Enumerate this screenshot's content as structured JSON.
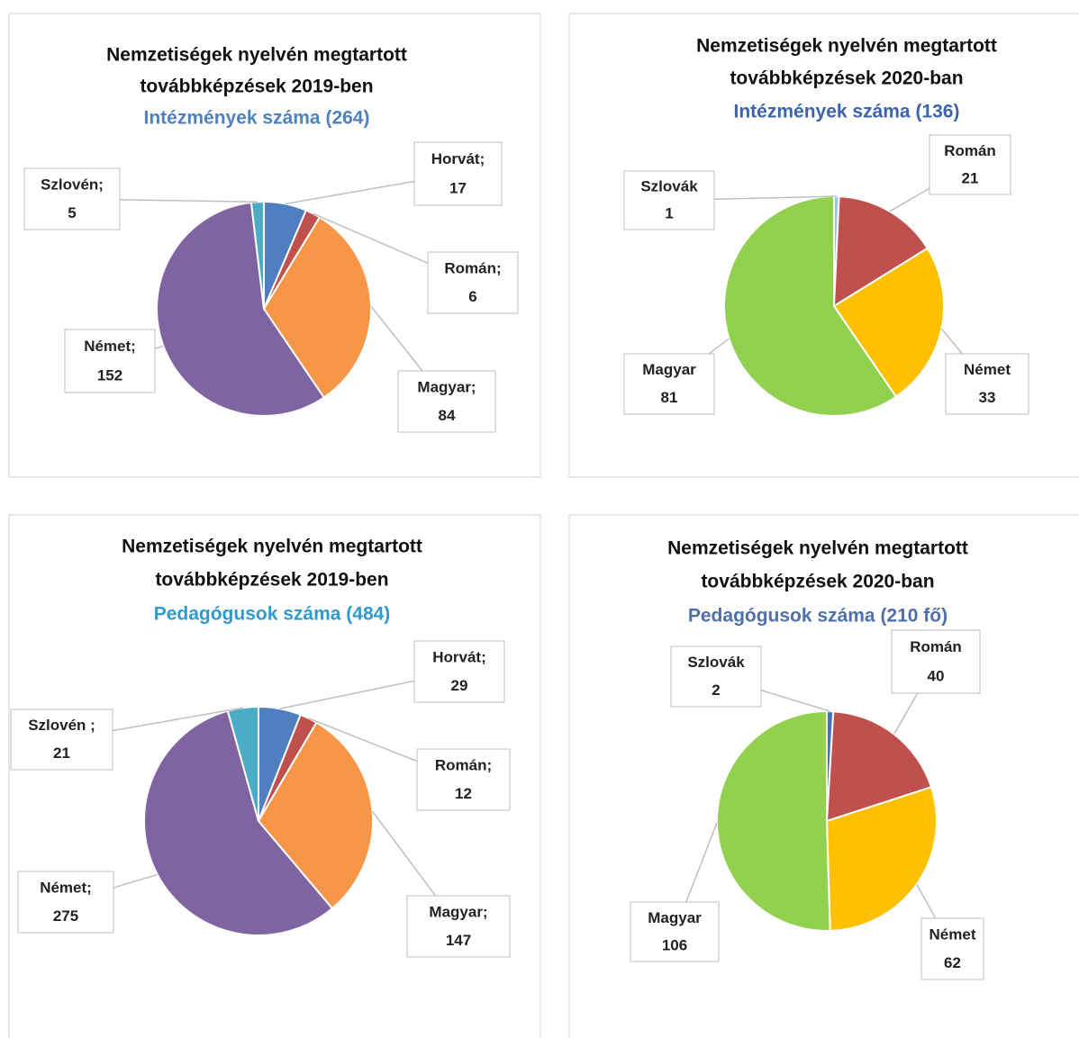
{
  "chart_data": [
    {
      "type": "pie",
      "title": [
        "Nemzetiségek nyelvén megtartott",
        "továbbképzések  2019-ben"
      ],
      "subtitle": "Intézmények száma (264)",
      "subtitle_color": "#4f81bd",
      "categories": [
        "Horvát;",
        "Román;",
        "Magyar;",
        "Német;",
        "Szlovén;"
      ],
      "values": [
        17,
        6,
        84,
        152,
        5
      ],
      "colors": [
        "#4f7fc1",
        "#c0504d",
        "#f79646",
        "#8064a2",
        "#4bacc6"
      ]
    },
    {
      "type": "pie",
      "title": [
        "Nemzetiségek nyelvén megtartott",
        "továbbképzések  2020-ban"
      ],
      "subtitle": "Intézmények száma (136)",
      "subtitle_color": "#3d64a8",
      "categories": [
        "Szlovák",
        "Román",
        "Német",
        "Magyar"
      ],
      "values": [
        1,
        21,
        33,
        81
      ],
      "colors": [
        "#9dc3e6",
        "#c0504d",
        "#ffc000",
        "#92d050"
      ]
    },
    {
      "type": "pie",
      "title": [
        "Nemzetiségek nyelvén megtartott",
        "továbbképzések 2019-ben"
      ],
      "subtitle": "Pedagógusok száma (484)",
      "subtitle_color": "#2e9bd0",
      "categories": [
        "Horvát;",
        "Román;",
        "Magyar;",
        "Német;",
        "Szlovén ;"
      ],
      "values": [
        29,
        12,
        147,
        275,
        21
      ],
      "colors": [
        "#4f7fc1",
        "#c0504d",
        "#f79646",
        "#8064a2",
        "#4bacc6"
      ]
    },
    {
      "type": "pie",
      "title": [
        "Nemzetiségek nyelvén megtartott",
        "továbbképzések 2020-ban"
      ],
      "subtitle": "Pedagógusok száma (210 fő)",
      "subtitle_color": "#4f6fa8",
      "categories": [
        "Szlovák",
        "Román",
        "Német",
        "Magyar"
      ],
      "values": [
        2,
        40,
        62,
        106
      ],
      "colors": [
        "#4472c4",
        "#c0504d",
        "#ffc000",
        "#92d050"
      ]
    }
  ]
}
